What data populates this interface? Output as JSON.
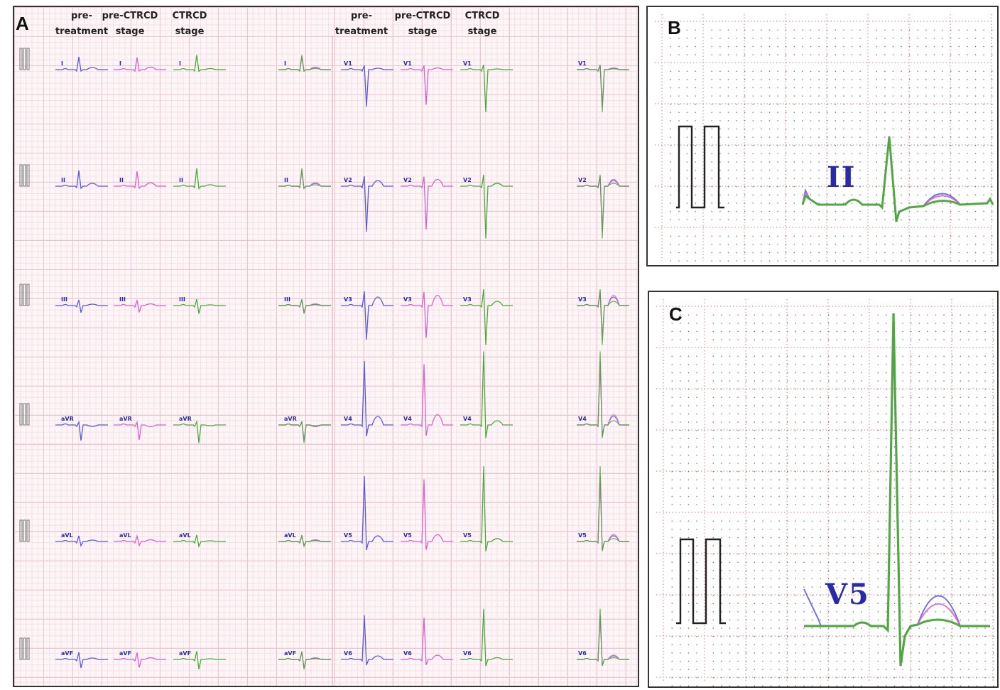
{
  "colors": {
    "pre_treatment": "#5a5ad6",
    "pre_ctrcd": "#d860c8",
    "ctrcd": "#4ca83c",
    "calibration": "#222222",
    "lead_label": "#2a2aa8"
  },
  "panel_a": {
    "label": "A",
    "column_headers": [
      {
        "key": "pre_treatment",
        "text": "pre-\ntreatment"
      },
      {
        "key": "pre_ctrcd",
        "text": "pre-CTRCD\nstage"
      },
      {
        "key": "ctrcd",
        "text": "CTRCD\nstage"
      },
      {
        "key": "pre_treatment",
        "text": "pre-\ntreatment"
      },
      {
        "key": "pre_ctrcd",
        "text": "pre-CTRCD\nstage"
      },
      {
        "key": "ctrcd",
        "text": "CTRCD\nstage"
      }
    ],
    "limb_leads": [
      "I",
      "II",
      "III",
      "aVR",
      "aVL",
      "aVF"
    ],
    "chest_leads": [
      "V1",
      "V2",
      "V3",
      "V4",
      "V5",
      "V6"
    ]
  },
  "panel_b": {
    "label": "B",
    "lead": "II"
  },
  "panel_c": {
    "label": "C",
    "lead": "V5"
  }
}
